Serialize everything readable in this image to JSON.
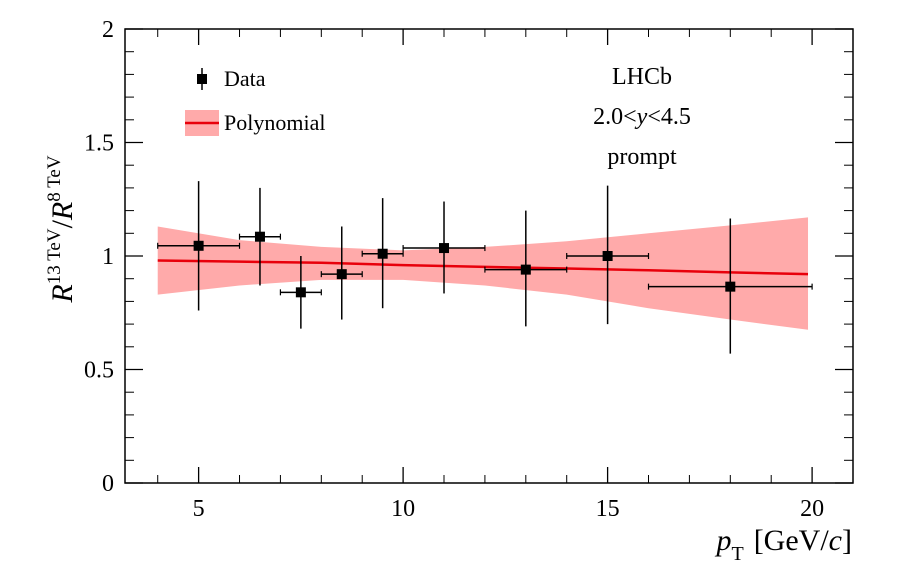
{
  "chart_data": {
    "type": "scatter",
    "title": "",
    "xlabel": "p_T [GeV/c]",
    "ylabel": "R^{13 TeV}/R^{8 TeV}",
    "xlim": [
      3.2,
      21
    ],
    "ylim": [
      0,
      2
    ],
    "x_ticks": [
      "5",
      "10",
      "15",
      "20"
    ],
    "y_ticks": [
      "0",
      "0.5",
      "1",
      "1.5",
      "2"
    ],
    "grid": false,
    "legend_position": "top-left",
    "legend": [
      {
        "label": "Data",
        "kind": "marker"
      },
      {
        "label": "Polynomial",
        "kind": "band"
      }
    ],
    "annotations": [
      "LHCb",
      "2.0<",
      "y",
      "<4.5",
      "prompt"
    ],
    "axis_titles": {
      "x_var": "p",
      "x_sub": "T",
      "x_unit_open": "[GeV/",
      "x_unit_var": "c",
      "x_unit_close": "]",
      "y_num": "R",
      "y_num_sup": "13 TeV",
      "y_slash": "/",
      "y_den": "R",
      "y_den_sup": "8 TeV"
    },
    "series": [
      {
        "name": "Data",
        "points": [
          {
            "x": 5.0,
            "xlo": 4.0,
            "xhi": 6.0,
            "y": 1.045,
            "ylo": 0.76,
            "yhi": 1.33
          },
          {
            "x": 6.5,
            "xlo": 6.0,
            "xhi": 7.0,
            "y": 1.085,
            "ylo": 0.87,
            "yhi": 1.3
          },
          {
            "x": 7.5,
            "xlo": 7.0,
            "xhi": 8.0,
            "y": 0.84,
            "ylo": 0.68,
            "yhi": 1.0
          },
          {
            "x": 8.5,
            "xlo": 8.0,
            "xhi": 9.0,
            "y": 0.92,
            "ylo": 0.72,
            "yhi": 1.13
          },
          {
            "x": 9.5,
            "xlo": 9.0,
            "xhi": 10.0,
            "y": 1.01,
            "ylo": 0.77,
            "yhi": 1.255
          },
          {
            "x": 11.0,
            "xlo": 10.0,
            "xhi": 12.0,
            "y": 1.035,
            "ylo": 0.835,
            "yhi": 1.24
          },
          {
            "x": 13.0,
            "xlo": 12.0,
            "xhi": 14.0,
            "y": 0.94,
            "ylo": 0.69,
            "yhi": 1.2
          },
          {
            "x": 15.0,
            "xlo": 14.0,
            "xhi": 16.0,
            "y": 1.0,
            "ylo": 0.7,
            "yhi": 1.31
          },
          {
            "x": 18.0,
            "xlo": 16.0,
            "xhi": 20.0,
            "y": 0.865,
            "ylo": 0.57,
            "yhi": 1.165
          }
        ]
      },
      {
        "name": "Polynomial",
        "line": [
          [
            4.0,
            0.98
          ],
          [
            6.0,
            0.975
          ],
          [
            8.0,
            0.97
          ],
          [
            10.0,
            0.96
          ],
          [
            12.0,
            0.952
          ],
          [
            14.0,
            0.945
          ],
          [
            16.0,
            0.937
          ],
          [
            18.0,
            0.928
          ],
          [
            19.9,
            0.92
          ]
        ],
        "band_upper": [
          [
            4.0,
            1.13
          ],
          [
            6.0,
            1.07
          ],
          [
            8.0,
            1.04
          ],
          [
            10.0,
            1.025
          ],
          [
            12.0,
            1.04
          ],
          [
            14.0,
            1.065
          ],
          [
            16.0,
            1.1
          ],
          [
            18.0,
            1.135
          ],
          [
            19.9,
            1.17
          ]
        ],
        "band_lower": [
          [
            4.0,
            0.83
          ],
          [
            6.0,
            0.87
          ],
          [
            8.0,
            0.895
          ],
          [
            10.0,
            0.895
          ],
          [
            12.0,
            0.87
          ],
          [
            14.0,
            0.83
          ],
          [
            16.0,
            0.77
          ],
          [
            18.0,
            0.72
          ],
          [
            19.9,
            0.675
          ]
        ]
      }
    ],
    "colors": {
      "fit_line": "#e8000b",
      "band": "#ffaaaa",
      "data": "#000000",
      "frame": "#000000"
    }
  }
}
